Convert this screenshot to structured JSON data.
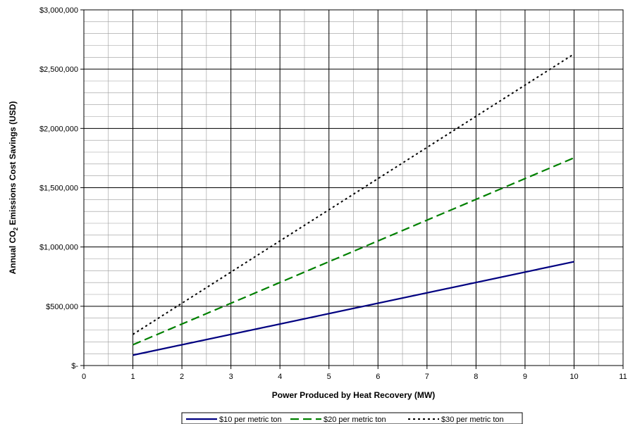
{
  "chart_data": {
    "type": "line",
    "title": "",
    "xlabel": "Power Produced by Heat Recovery (MW)",
    "ylabel_main": "Annual CO",
    "ylabel_sub": "2",
    "ylabel_rest": " Emissions Cost Savings (USD)",
    "xlim": [
      0,
      11
    ],
    "ylim": [
      0,
      3000000
    ],
    "x_major_step": 1,
    "x_minor_step": 0.5,
    "y_major_step": 500000,
    "y_minor_step": 100000,
    "x_tick_labels": [
      "0",
      "1",
      "2",
      "3",
      "4",
      "5",
      "6",
      "7",
      "8",
      "9",
      "10",
      "11"
    ],
    "y_tick_labels": [
      "$-",
      "$500,000",
      "$1,000,000",
      "$1,500,000",
      "$2,000,000",
      "$2,500,000",
      "$3,000,000"
    ],
    "grid": true,
    "legend_position": "bottom",
    "x": [
      1,
      10
    ],
    "series": [
      {
        "name": "$10 per metric ton",
        "values": [
          87600,
          876000
        ],
        "color": "#000080",
        "style": "solid"
      },
      {
        "name": "$20 per metric ton",
        "values": [
          175200,
          1752000
        ],
        "color": "#008000",
        "style": "dashed"
      },
      {
        "name": "$30 per metric ton",
        "values": [
          262800,
          2628000
        ],
        "color": "#000000",
        "style": "dotted"
      }
    ]
  }
}
